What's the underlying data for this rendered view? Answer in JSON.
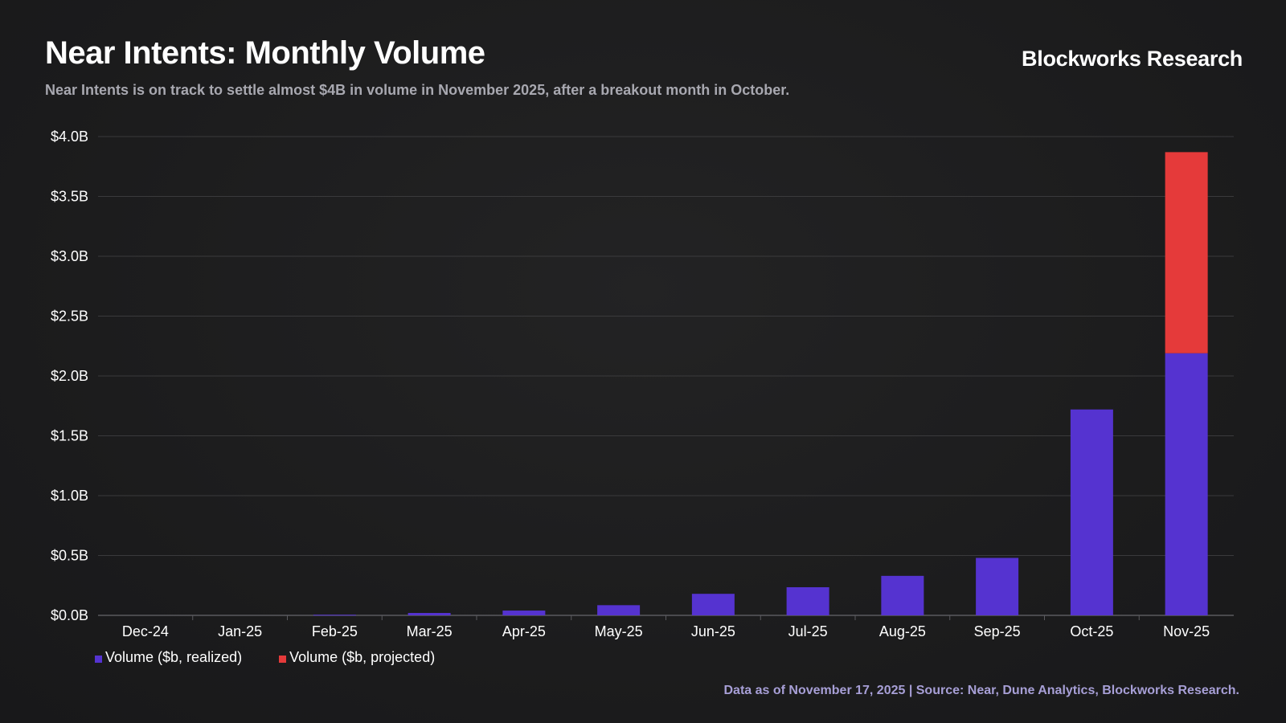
{
  "header": {
    "title": "Near Intents: Monthly Volume",
    "subtitle": "Near Intents is on track to settle almost $4B in volume in November 2025, after a breakout month in October.",
    "brand": "Blockworks Research"
  },
  "footer": {
    "source": "Data as of November 17, 2025 | Source: Near, Dune Analytics, Blockworks Research."
  },
  "colors": {
    "realized": "#5533d0",
    "projected": "#e53a3a",
    "gridline": "#3a3a3c",
    "axis_text": "#ffffff"
  },
  "chart_data": {
    "type": "bar",
    "stacked": true,
    "categories": [
      "Dec-24",
      "Jan-25",
      "Feb-25",
      "Mar-25",
      "Apr-25",
      "May-25",
      "Jun-25",
      "Jul-25",
      "Aug-25",
      "Sep-25",
      "Oct-25",
      "Nov-25"
    ],
    "series": [
      {
        "name": "Volume ($b, realized)",
        "color": "#5533d0",
        "values": [
          0,
          0,
          0.005,
          0.02,
          0.04,
          0.085,
          0.18,
          0.235,
          0.33,
          0.48,
          1.72,
          2.19
        ]
      },
      {
        "name": "Volume ($b, projected)",
        "color": "#e53a3a",
        "values": [
          0,
          0,
          0,
          0,
          0,
          0,
          0,
          0,
          0,
          0,
          0,
          1.68
        ]
      }
    ],
    "yticks": [
      "$0.0B",
      "$0.5B",
      "$1.0B",
      "$1.5B",
      "$2.0B",
      "$2.5B",
      "$3.0B",
      "$3.5B",
      "$4.0B"
    ],
    "ylim": [
      0,
      4
    ],
    "grid": true,
    "legend_position": "bottom-left"
  }
}
